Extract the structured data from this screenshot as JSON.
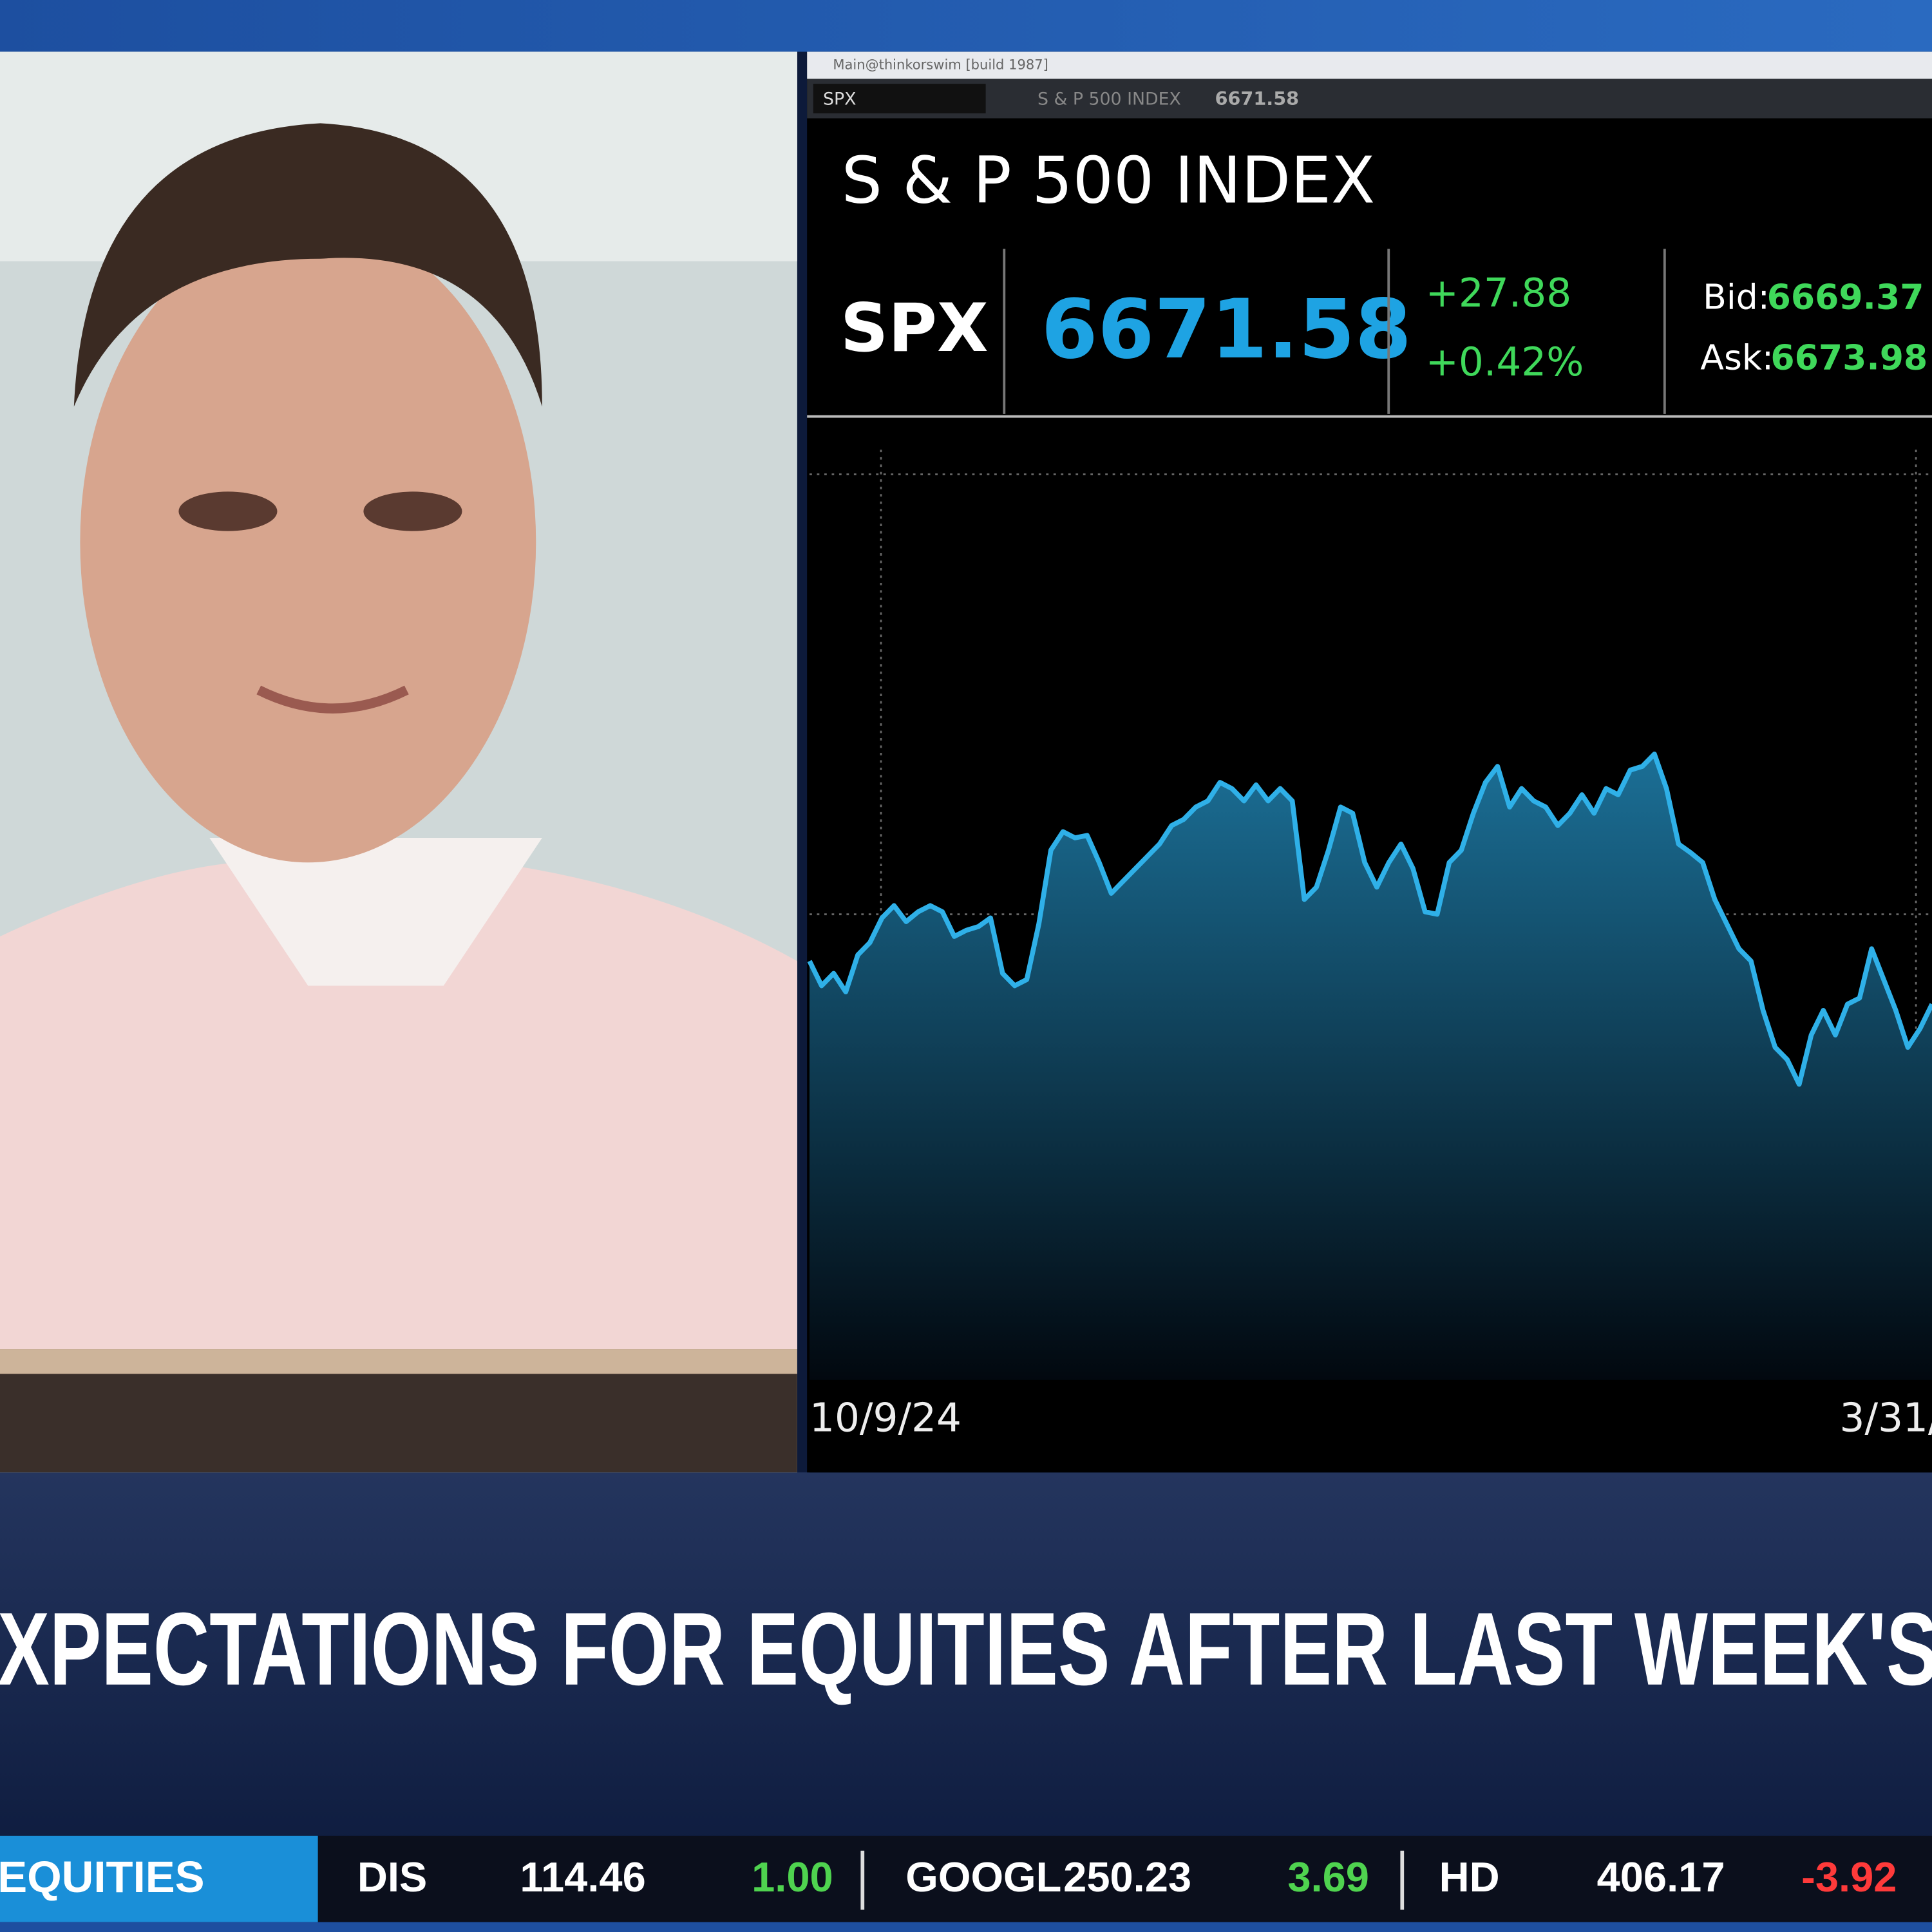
{
  "window": {
    "title": "Main@thinkorswim [build 1987]"
  },
  "toolbar": {
    "symbol": "SPX",
    "name": "S & P 500 INDEX",
    "last": "6671.58"
  },
  "quote": {
    "title": "S & P 500 INDEX",
    "symbol": "SPX",
    "last": "6671.58",
    "change": "+27.88",
    "change_percent": "+0.42%",
    "bid_label": "Bid:",
    "bid": "6669.37",
    "ask_label": "Ask:",
    "ask": "6673.98"
  },
  "chart": {
    "type": "line",
    "color": "#2fb0e8",
    "x_labels": [
      "10/9/24",
      "3/31/"
    ],
    "ylim": [
      0,
      760
    ],
    "values": [
      340,
      320,
      330,
      315,
      345,
      355,
      375,
      385,
      372,
      380,
      385,
      380,
      360,
      365,
      368,
      375,
      330,
      320,
      325,
      370,
      430,
      445,
      440,
      442,
      420,
      395,
      405,
      415,
      425,
      435,
      450,
      455,
      465,
      470,
      485,
      480,
      470,
      483,
      470,
      480,
      470,
      390,
      400,
      430,
      465,
      460,
      420,
      400,
      420,
      435,
      415,
      380,
      378,
      420,
      430,
      460,
      485,
      498,
      465,
      480,
      470,
      465,
      450,
      460,
      475,
      460,
      480,
      475,
      495,
      498,
      508,
      480,
      435,
      428,
      420,
      390,
      370,
      350,
      340,
      300,
      270,
      260,
      240,
      280,
      300,
      280,
      305,
      310,
      350,
      325,
      300,
      270,
      285,
      305
    ]
  },
  "headline": "XPECTATIONS FOR EQUITIES AFTER LAST WEEK'S",
  "ticker": {
    "section": "EQUITIES",
    "items": [
      {
        "symbol": "DIS",
        "price": "114.46",
        "change": "1.00"
      },
      {
        "symbol": "GOOGL",
        "price": "250.23",
        "change": "3.69"
      },
      {
        "symbol": "HD",
        "price": "406.17",
        "change": "-3.92"
      }
    ]
  }
}
